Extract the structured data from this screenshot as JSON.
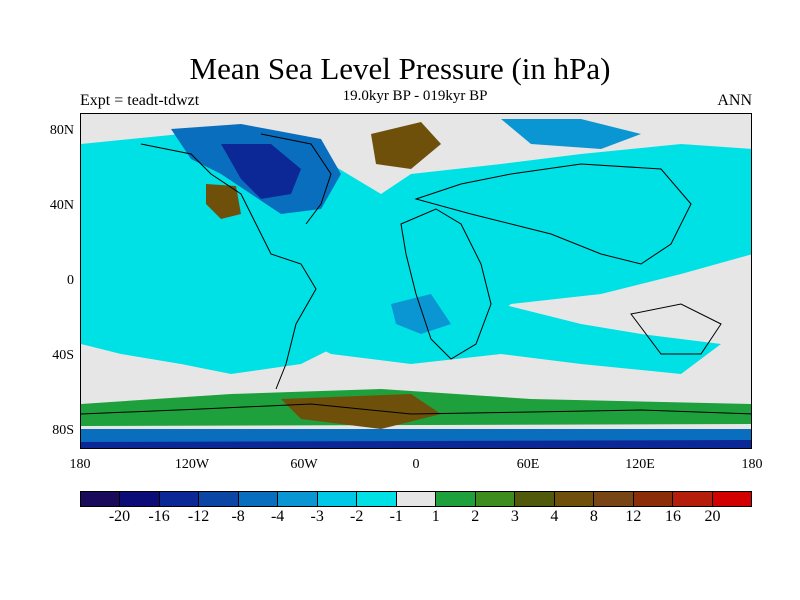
{
  "title": "Mean Sea Level Pressure (in hPa)",
  "subtitle": "19.0kyr BP - 019kyr BP",
  "expt": "Expt = teadt-tdwzt",
  "season": "ANN",
  "lat_ticks": [
    "80N",
    "40N",
    "0",
    "40S",
    "80S"
  ],
  "lon_ticks": [
    "180",
    "120W",
    "60W",
    "0",
    "60E",
    "120E",
    "180"
  ],
  "colorbar": {
    "colors": [
      "#1a0a5c",
      "#0c0c78",
      "#0c2896",
      "#0c46a5",
      "#0a6ebe",
      "#0a96d2",
      "#00c8e6",
      "#00e1e6",
      "#e6e6e6",
      "#1ea03c",
      "#3c8c1e",
      "#505a0a",
      "#6e500a",
      "#784614",
      "#8c2d0a",
      "#b41e0a",
      "#d20000"
    ],
    "labels": [
      "-20",
      "-16",
      "-12",
      "-8",
      "-4",
      "-3",
      "-2",
      "-1",
      "1",
      "2",
      "3",
      "4",
      "8",
      "12",
      "16",
      "20"
    ]
  }
}
